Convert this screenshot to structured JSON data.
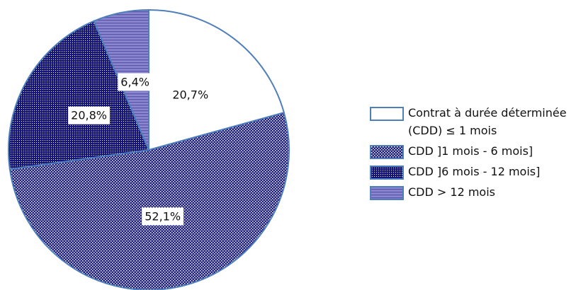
{
  "chart_data": {
    "type": "pie",
    "categories": [
      "Contrat à durée déterminée (CDD) ≤ 1 mois",
      "CDD ]1 mois - 6 mois]",
      "CDD ]6 mois - 12 mois]",
      "CDD > 12 mois"
    ],
    "values": [
      20.7,
      52.1,
      20.8,
      6.4
    ],
    "value_labels": [
      "20,7%",
      "52,1%",
      "20,8%",
      "6,4%"
    ],
    "colors": [
      "#ffffff",
      "#1c1c8c",
      "#16167a",
      "#8a86d0"
    ],
    "legend": "right"
  }
}
